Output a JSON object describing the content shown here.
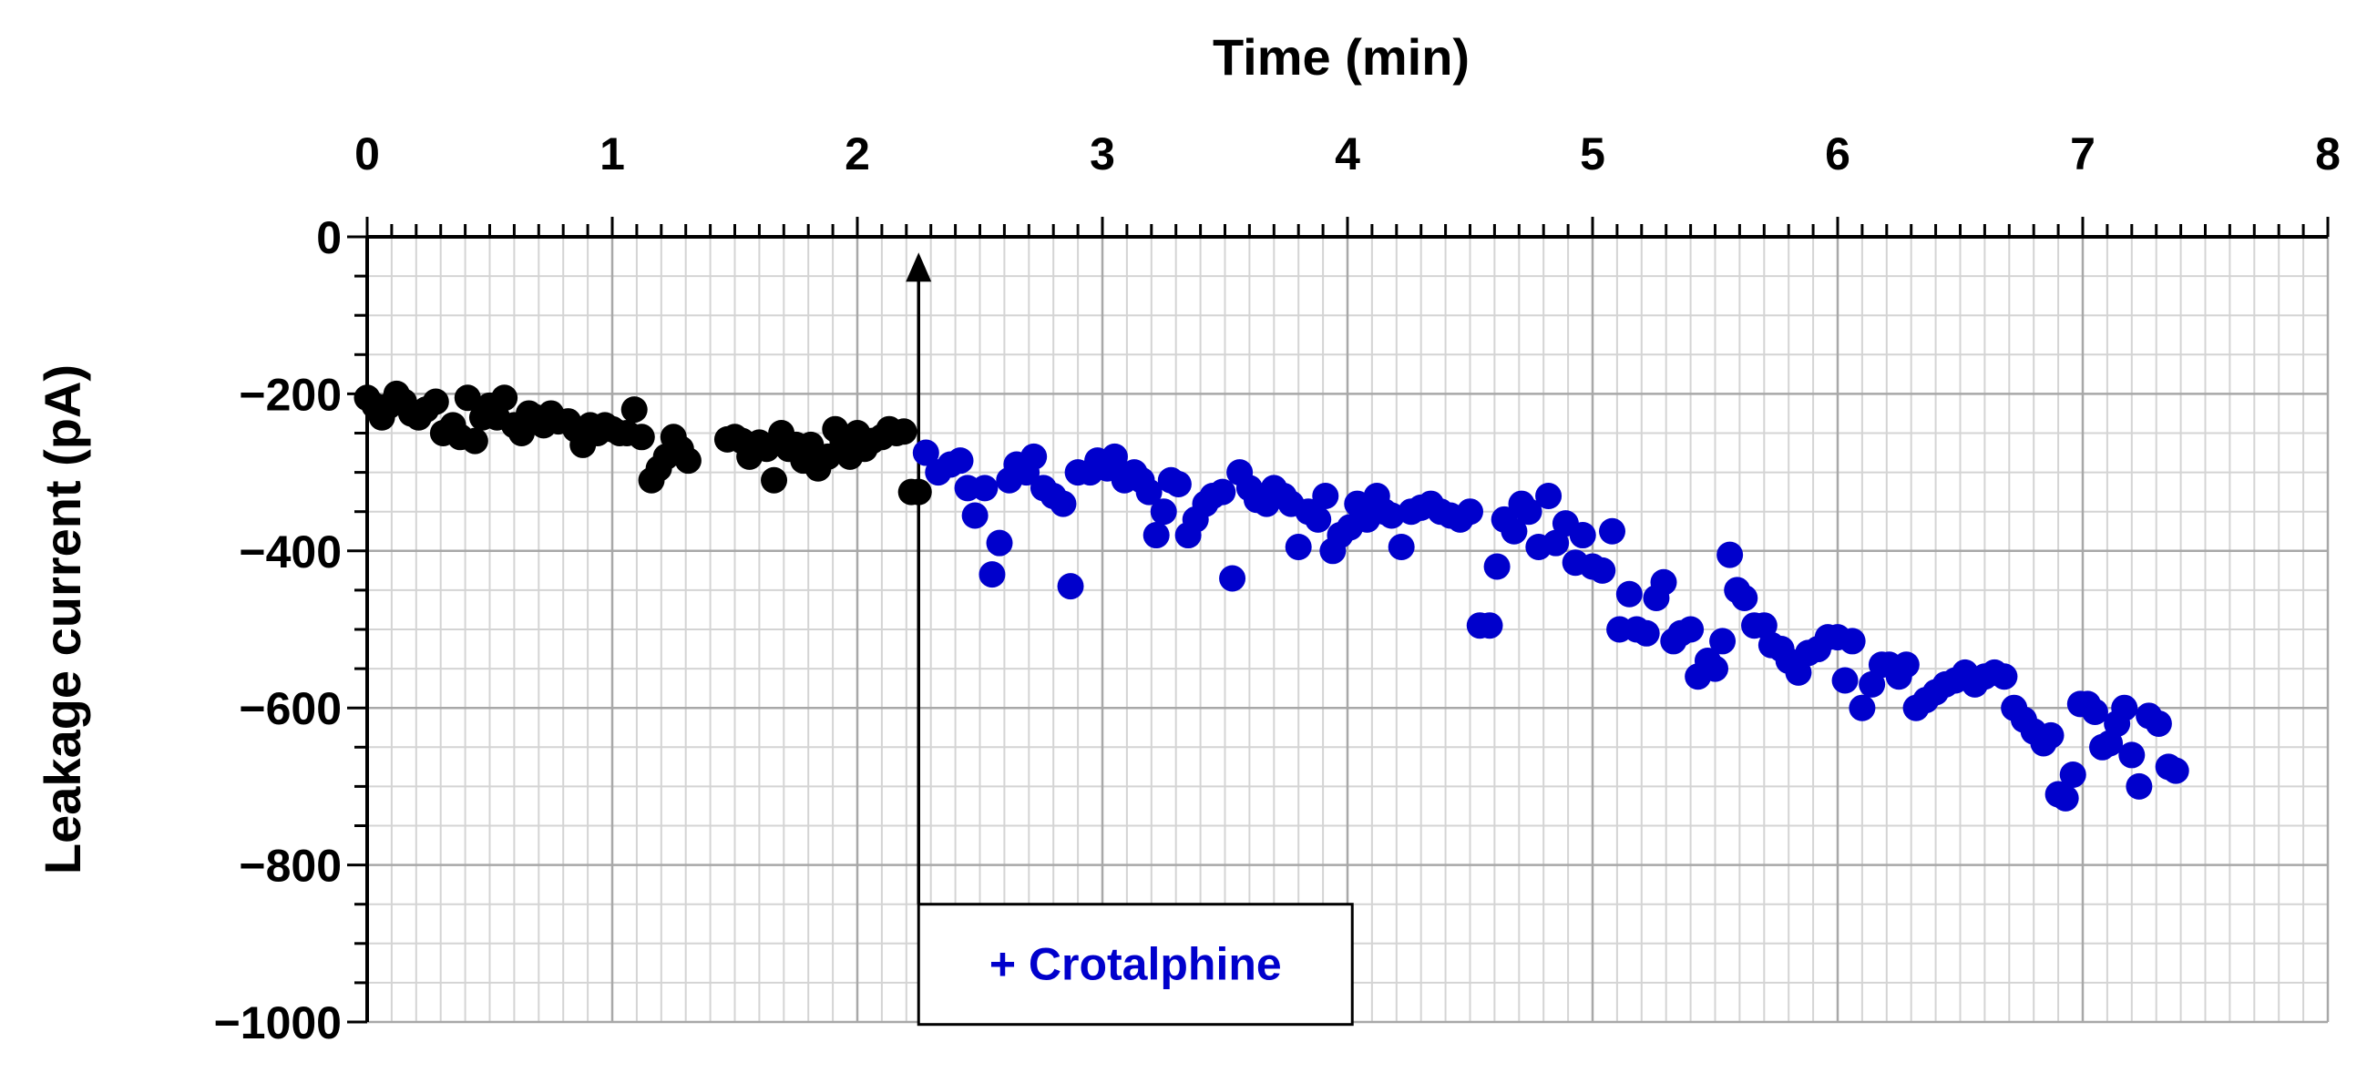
{
  "chart_data": {
    "type": "scatter",
    "title": "",
    "xlabel": "Time (min)",
    "ylabel": "Leakage current (pA)",
    "xlim": [
      0,
      8
    ],
    "ylim": [
      -1000,
      0
    ],
    "x_ticks": [
      0,
      1,
      2,
      3,
      4,
      5,
      6,
      7,
      8
    ],
    "x_tick_labels": [
      "0",
      "1",
      "2",
      "3",
      "4",
      "5",
      "6",
      "7",
      "8"
    ],
    "y_ticks": [
      0,
      -200,
      -400,
      -600,
      -800,
      -1000
    ],
    "y_tick_labels": [
      "0",
      "−200",
      "−400",
      "−600",
      "−800",
      "−1000"
    ],
    "x_axis_position": "top",
    "grid": true,
    "legend": "none",
    "annotation": {
      "label": "+ Crotalphine",
      "x": 2.25,
      "arrow_from_y": -850,
      "arrow_to_y": -20,
      "color": "#0000cc"
    },
    "series": [
      {
        "color": "#000000",
        "points": [
          [
            0.0,
            -205
          ],
          [
            0.03,
            -215
          ],
          [
            0.06,
            -230
          ],
          [
            0.09,
            -215
          ],
          [
            0.12,
            -200
          ],
          [
            0.15,
            -210
          ],
          [
            0.18,
            -225
          ],
          [
            0.21,
            -230
          ],
          [
            0.24,
            -220
          ],
          [
            0.28,
            -210
          ],
          [
            0.31,
            -250
          ],
          [
            0.35,
            -240
          ],
          [
            0.38,
            -255
          ],
          [
            0.41,
            -205
          ],
          [
            0.44,
            -260
          ],
          [
            0.47,
            -230
          ],
          [
            0.5,
            -215
          ],
          [
            0.53,
            -230
          ],
          [
            0.56,
            -205
          ],
          [
            0.6,
            -240
          ],
          [
            0.63,
            -250
          ],
          [
            0.66,
            -225
          ],
          [
            0.69,
            -230
          ],
          [
            0.72,
            -240
          ],
          [
            0.75,
            -225
          ],
          [
            0.78,
            -235
          ],
          [
            0.82,
            -235
          ],
          [
            0.85,
            -245
          ],
          [
            0.88,
            -265
          ],
          [
            0.91,
            -240
          ],
          [
            0.94,
            -250
          ],
          [
            0.97,
            -240
          ],
          [
            1.0,
            -245
          ],
          [
            1.03,
            -250
          ],
          [
            1.06,
            -250
          ],
          [
            1.09,
            -220
          ],
          [
            1.12,
            -255
          ],
          [
            1.16,
            -310
          ],
          [
            1.19,
            -295
          ],
          [
            1.22,
            -280
          ],
          [
            1.25,
            -255
          ],
          [
            1.28,
            -270
          ],
          [
            1.31,
            -285
          ],
          [
            1.47,
            -258
          ],
          [
            1.5,
            -255
          ],
          [
            1.53,
            -260
          ],
          [
            1.56,
            -280
          ],
          [
            1.6,
            -262
          ],
          [
            1.63,
            -270
          ],
          [
            1.66,
            -310
          ],
          [
            1.69,
            -250
          ],
          [
            1.72,
            -270
          ],
          [
            1.75,
            -265
          ],
          [
            1.78,
            -285
          ],
          [
            1.81,
            -265
          ],
          [
            1.84,
            -295
          ],
          [
            1.88,
            -280
          ],
          [
            1.91,
            -245
          ],
          [
            1.94,
            -260
          ],
          [
            1.97,
            -280
          ],
          [
            2.0,
            -250
          ],
          [
            2.03,
            -270
          ],
          [
            2.06,
            -260
          ],
          [
            2.1,
            -255
          ],
          [
            2.13,
            -245
          ],
          [
            2.16,
            -250
          ],
          [
            2.19,
            -248
          ],
          [
            2.22,
            -325
          ],
          [
            2.25,
            -325
          ]
        ]
      },
      {
        "color": "#0000cc",
        "points": [
          [
            2.28,
            -275
          ],
          [
            2.33,
            -300
          ],
          [
            2.38,
            -290
          ],
          [
            2.42,
            -285
          ],
          [
            2.45,
            -320
          ],
          [
            2.48,
            -355
          ],
          [
            2.52,
            -320
          ],
          [
            2.55,
            -430
          ],
          [
            2.58,
            -390
          ],
          [
            2.62,
            -310
          ],
          [
            2.65,
            -290
          ],
          [
            2.69,
            -300
          ],
          [
            2.72,
            -280
          ],
          [
            2.76,
            -320
          ],
          [
            2.8,
            -330
          ],
          [
            2.84,
            -340
          ],
          [
            2.87,
            -445
          ],
          [
            2.9,
            -300
          ],
          [
            2.95,
            -300
          ],
          [
            2.98,
            -285
          ],
          [
            3.02,
            -295
          ],
          [
            3.05,
            -280
          ],
          [
            3.09,
            -310
          ],
          [
            3.13,
            -300
          ],
          [
            3.16,
            -310
          ],
          [
            3.19,
            -325
          ],
          [
            3.22,
            -380
          ],
          [
            3.25,
            -350
          ],
          [
            3.28,
            -310
          ],
          [
            3.31,
            -315
          ],
          [
            3.35,
            -380
          ],
          [
            3.38,
            -360
          ],
          [
            3.42,
            -340
          ],
          [
            3.45,
            -330
          ],
          [
            3.49,
            -325
          ],
          [
            3.53,
            -435
          ],
          [
            3.56,
            -300
          ],
          [
            3.6,
            -320
          ],
          [
            3.63,
            -335
          ],
          [
            3.67,
            -340
          ],
          [
            3.7,
            -320
          ],
          [
            3.74,
            -330
          ],
          [
            3.77,
            -340
          ],
          [
            3.8,
            -395
          ],
          [
            3.84,
            -350
          ],
          [
            3.88,
            -360
          ],
          [
            3.91,
            -330
          ],
          [
            3.94,
            -400
          ],
          [
            3.97,
            -380
          ],
          [
            4.01,
            -370
          ],
          [
            4.04,
            -340
          ],
          [
            4.08,
            -360
          ],
          [
            4.12,
            -330
          ],
          [
            4.15,
            -350
          ],
          [
            4.18,
            -355
          ],
          [
            4.22,
            -395
          ],
          [
            4.26,
            -350
          ],
          [
            4.3,
            -345
          ],
          [
            4.34,
            -340
          ],
          [
            4.38,
            -350
          ],
          [
            4.42,
            -355
          ],
          [
            4.46,
            -360
          ],
          [
            4.5,
            -350
          ],
          [
            4.54,
            -495
          ],
          [
            4.58,
            -495
          ],
          [
            4.61,
            -420
          ],
          [
            4.64,
            -360
          ],
          [
            4.68,
            -375
          ],
          [
            4.71,
            -340
          ],
          [
            4.74,
            -350
          ],
          [
            4.78,
            -395
          ],
          [
            4.82,
            -330
          ],
          [
            4.85,
            -390
          ],
          [
            4.89,
            -365
          ],
          [
            4.93,
            -415
          ],
          [
            4.96,
            -380
          ],
          [
            5.0,
            -420
          ],
          [
            5.04,
            -425
          ],
          [
            5.08,
            -375
          ],
          [
            5.11,
            -500
          ],
          [
            5.15,
            -455
          ],
          [
            5.18,
            -500
          ],
          [
            5.22,
            -505
          ],
          [
            5.26,
            -460
          ],
          [
            5.29,
            -440
          ],
          [
            5.33,
            -515
          ],
          [
            5.36,
            -505
          ],
          [
            5.4,
            -500
          ],
          [
            5.43,
            -560
          ],
          [
            5.47,
            -540
          ],
          [
            5.5,
            -550
          ],
          [
            5.53,
            -515
          ],
          [
            5.56,
            -405
          ],
          [
            5.59,
            -450
          ],
          [
            5.62,
            -460
          ],
          [
            5.66,
            -495
          ],
          [
            5.7,
            -495
          ],
          [
            5.73,
            -520
          ],
          [
            5.77,
            -525
          ],
          [
            5.8,
            -540
          ],
          [
            5.84,
            -555
          ],
          [
            5.88,
            -530
          ],
          [
            5.92,
            -525
          ],
          [
            5.96,
            -510
          ],
          [
            6.0,
            -510
          ],
          [
            6.03,
            -565
          ],
          [
            6.06,
            -515
          ],
          [
            6.1,
            -600
          ],
          [
            6.14,
            -570
          ],
          [
            6.18,
            -545
          ],
          [
            6.21,
            -545
          ],
          [
            6.25,
            -560
          ],
          [
            6.28,
            -545
          ],
          [
            6.32,
            -600
          ],
          [
            6.36,
            -590
          ],
          [
            6.4,
            -580
          ],
          [
            6.44,
            -570
          ],
          [
            6.48,
            -565
          ],
          [
            6.52,
            -555
          ],
          [
            6.56,
            -570
          ],
          [
            6.6,
            -560
          ],
          [
            6.64,
            -555
          ],
          [
            6.68,
            -560
          ],
          [
            6.72,
            -600
          ],
          [
            6.76,
            -615
          ],
          [
            6.8,
            -630
          ],
          [
            6.84,
            -645
          ],
          [
            6.87,
            -635
          ],
          [
            6.9,
            -710
          ],
          [
            6.93,
            -715
          ],
          [
            6.96,
            -685
          ],
          [
            6.99,
            -595
          ],
          [
            7.02,
            -595
          ],
          [
            7.05,
            -605
          ],
          [
            7.08,
            -650
          ],
          [
            7.11,
            -645
          ],
          [
            7.14,
            -620
          ],
          [
            7.17,
            -600
          ],
          [
            7.2,
            -660
          ],
          [
            7.23,
            -700
          ],
          [
            7.27,
            -610
          ],
          [
            7.31,
            -620
          ],
          [
            7.35,
            -675
          ],
          [
            7.38,
            -680
          ]
        ]
      }
    ]
  }
}
